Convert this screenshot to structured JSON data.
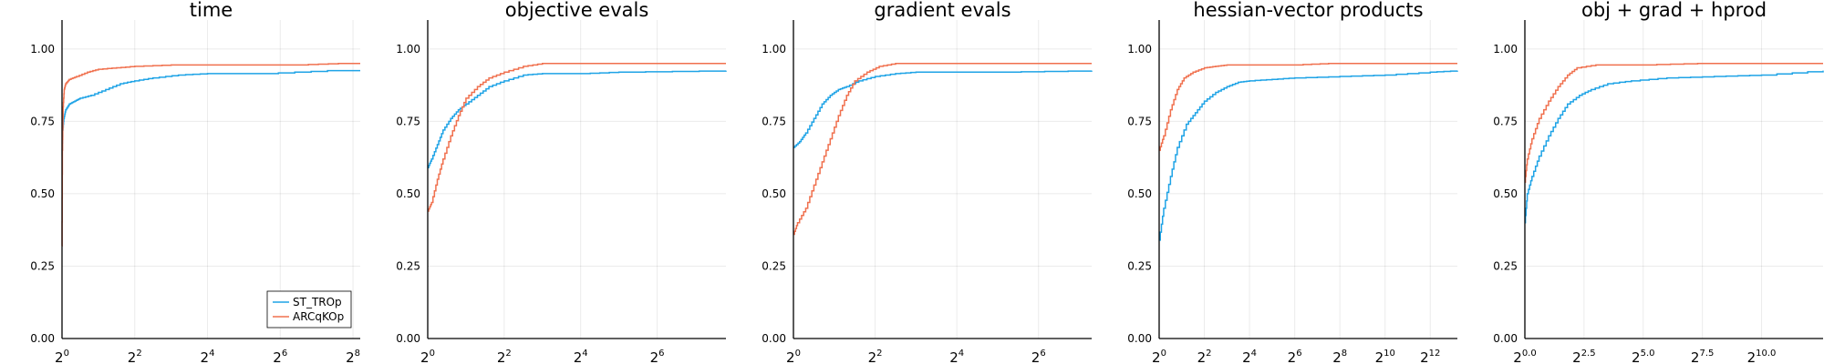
{
  "colors": {
    "ST_TROp": "#1ea3e6",
    "ARCqKOp": "#f0704e"
  },
  "chart_data": [
    {
      "type": "line",
      "title": "time",
      "ylim": [
        0,
        1.1
      ],
      "yticks": [
        "0.00",
        "0.25",
        "0.50",
        "0.75",
        "1.00"
      ],
      "xlim_log2": [
        0,
        8.2
      ],
      "xticks": [
        {
          "exp": "0",
          "v": 0
        },
        {
          "exp": "2",
          "v": 2
        },
        {
          "exp": "4",
          "v": 4
        },
        {
          "exp": "6",
          "v": 6
        },
        {
          "exp": "8",
          "v": 8
        }
      ],
      "grid": true,
      "legend": "bottom-right",
      "series": [
        {
          "name": "ST_TROp",
          "color": "#1ea3e6",
          "x_log2": [
            0,
            0.02,
            0.05,
            0.1,
            0.2,
            0.35,
            0.5,
            0.8,
            1.2,
            1.6,
            2.0,
            2.5,
            3.2,
            4.0,
            5.5,
            7.3,
            8.2
          ],
          "y": [
            0.63,
            0.72,
            0.76,
            0.79,
            0.81,
            0.82,
            0.83,
            0.84,
            0.86,
            0.88,
            0.89,
            0.9,
            0.91,
            0.915,
            0.915,
            0.925,
            0.925
          ]
        },
        {
          "name": "ARCqKOp",
          "color": "#f0704e",
          "x_log2": [
            0,
            0.01,
            0.03,
            0.06,
            0.1,
            0.2,
            0.4,
            0.7,
            1.0,
            1.5,
            2.0,
            3.0,
            4.0,
            5.0,
            6.5,
            7.6,
            8.2
          ],
          "y": [
            0.32,
            0.65,
            0.8,
            0.86,
            0.88,
            0.895,
            0.905,
            0.92,
            0.93,
            0.935,
            0.94,
            0.945,
            0.945,
            0.945,
            0.945,
            0.95,
            0.95
          ]
        }
      ]
    },
    {
      "type": "line",
      "title": "objective evals",
      "ylim": [
        0,
        1.1
      ],
      "yticks": [
        "0.00",
        "0.25",
        "0.50",
        "0.75",
        "1.00"
      ],
      "xlim_log2": [
        0,
        7.8
      ],
      "xticks": [
        {
          "exp": "0",
          "v": 0
        },
        {
          "exp": "2",
          "v": 2
        },
        {
          "exp": "4",
          "v": 4
        },
        {
          "exp": "6",
          "v": 6
        }
      ],
      "grid": true,
      "series": [
        {
          "name": "ST_TROp",
          "color": "#1ea3e6",
          "x_log2": [
            0,
            0.1,
            0.25,
            0.4,
            0.6,
            0.8,
            1.0,
            1.3,
            1.6,
            2.0,
            2.5,
            3.0,
            4.0,
            5.0,
            7.8
          ],
          "y": [
            0.59,
            0.62,
            0.67,
            0.72,
            0.76,
            0.79,
            0.81,
            0.84,
            0.87,
            0.89,
            0.91,
            0.915,
            0.915,
            0.92,
            0.925
          ]
        },
        {
          "name": "ARCqKOp",
          "color": "#f0704e",
          "x_log2": [
            0,
            0.1,
            0.25,
            0.4,
            0.6,
            0.8,
            1.0,
            1.3,
            1.6,
            2.0,
            2.5,
            3.0,
            4.0,
            7.8
          ],
          "y": [
            0.44,
            0.47,
            0.55,
            0.62,
            0.7,
            0.77,
            0.83,
            0.87,
            0.9,
            0.92,
            0.94,
            0.95,
            0.95,
            0.95
          ]
        }
      ]
    },
    {
      "type": "line",
      "title": "gradient evals",
      "ylim": [
        0,
        1.1
      ],
      "yticks": [
        "0.00",
        "0.25",
        "0.50",
        "0.75",
        "1.00"
      ],
      "xlim_log2": [
        0,
        7.3
      ],
      "xticks": [
        {
          "exp": "0",
          "v": 0
        },
        {
          "exp": "2",
          "v": 2
        },
        {
          "exp": "4",
          "v": 4
        },
        {
          "exp": "6",
          "v": 6
        }
      ],
      "grid": true,
      "series": [
        {
          "name": "ST_TROp",
          "color": "#1ea3e6",
          "x_log2": [
            0,
            0.15,
            0.3,
            0.5,
            0.7,
            0.9,
            1.1,
            1.3,
            1.6,
            2.0,
            2.5,
            3.0,
            4.0,
            5.0,
            7.3
          ],
          "y": [
            0.66,
            0.68,
            0.71,
            0.76,
            0.81,
            0.84,
            0.86,
            0.87,
            0.89,
            0.905,
            0.915,
            0.92,
            0.92,
            0.92,
            0.925
          ]
        },
        {
          "name": "ARCqKOp",
          "color": "#f0704e",
          "x_log2": [
            0,
            0.1,
            0.3,
            0.5,
            0.7,
            0.9,
            1.1,
            1.3,
            1.5,
            1.8,
            2.1,
            2.5,
            3.0,
            7.3
          ],
          "y": [
            0.36,
            0.4,
            0.45,
            0.53,
            0.61,
            0.69,
            0.77,
            0.84,
            0.89,
            0.92,
            0.94,
            0.95,
            0.95,
            0.95
          ]
        }
      ]
    },
    {
      "type": "line",
      "title": "hessian-vector products",
      "ylim": [
        0,
        1.1
      ],
      "yticks": [
        "0.00",
        "0.25",
        "0.50",
        "0.75",
        "1.00"
      ],
      "xlim_log2": [
        0,
        13.2
      ],
      "xticks": [
        {
          "exp": "0",
          "v": 0
        },
        {
          "exp": "2",
          "v": 2
        },
        {
          "exp": "4",
          "v": 4
        },
        {
          "exp": "6",
          "v": 6
        },
        {
          "exp": "8",
          "v": 8
        },
        {
          "exp": "10",
          "v": 10
        },
        {
          "exp": "12",
          "v": 12
        }
      ],
      "grid": true,
      "series": [
        {
          "name": "ST_TROp",
          "color": "#1ea3e6",
          "x_log2": [
            0,
            0.2,
            0.5,
            0.8,
            1.2,
            1.6,
            2.0,
            2.5,
            3.0,
            3.5,
            4.0,
            5.0,
            6.0,
            8.0,
            10.0,
            12.0,
            13.2
          ],
          "y": [
            0.34,
            0.45,
            0.56,
            0.66,
            0.74,
            0.78,
            0.82,
            0.85,
            0.87,
            0.885,
            0.89,
            0.895,
            0.9,
            0.905,
            0.91,
            0.92,
            0.925
          ]
        },
        {
          "name": "ARCqKOp",
          "color": "#f0704e",
          "x_log2": [
            0,
            0.2,
            0.5,
            0.8,
            1.1,
            1.5,
            2.0,
            2.5,
            3.0,
            4.0,
            6.0,
            7.5,
            13.2
          ],
          "y": [
            0.65,
            0.7,
            0.79,
            0.86,
            0.9,
            0.92,
            0.935,
            0.94,
            0.945,
            0.945,
            0.945,
            0.95,
            0.95
          ]
        }
      ]
    },
    {
      "type": "line",
      "title": "obj + grad + hprod",
      "ylim": [
        0,
        1.1
      ],
      "yticks": [
        "0.00",
        "0.25",
        "0.50",
        "0.75",
        "1.00"
      ],
      "xlim_log2": [
        0,
        12.6
      ],
      "xticks": [
        {
          "exp": "0.0",
          "v": 0
        },
        {
          "exp": "2.5",
          "v": 2.5
        },
        {
          "exp": "5.0",
          "v": 5.0
        },
        {
          "exp": "7.5",
          "v": 7.5
        },
        {
          "exp": "10.0",
          "v": 10.0
        }
      ],
      "grid": true,
      "series": [
        {
          "name": "ST_TROp",
          "color": "#1ea3e6",
          "x_log2": [
            0,
            0.1,
            0.3,
            0.6,
            1.0,
            1.4,
            1.8,
            2.3,
            2.8,
            3.5,
            4.5,
            6.0,
            8.0,
            10.0,
            12.6
          ],
          "y": [
            0.4,
            0.5,
            0.56,
            0.63,
            0.7,
            0.76,
            0.81,
            0.84,
            0.86,
            0.88,
            0.89,
            0.9,
            0.905,
            0.91,
            0.925
          ]
        },
        {
          "name": "ARCqKOp",
          "color": "#f0704e",
          "x_log2": [
            0,
            0.1,
            0.3,
            0.6,
            1.0,
            1.4,
            1.8,
            2.2,
            3.0,
            5.0,
            7.3,
            12.6
          ],
          "y": [
            0.54,
            0.62,
            0.69,
            0.76,
            0.82,
            0.87,
            0.91,
            0.935,
            0.945,
            0.945,
            0.95,
            0.95
          ]
        }
      ]
    }
  ]
}
